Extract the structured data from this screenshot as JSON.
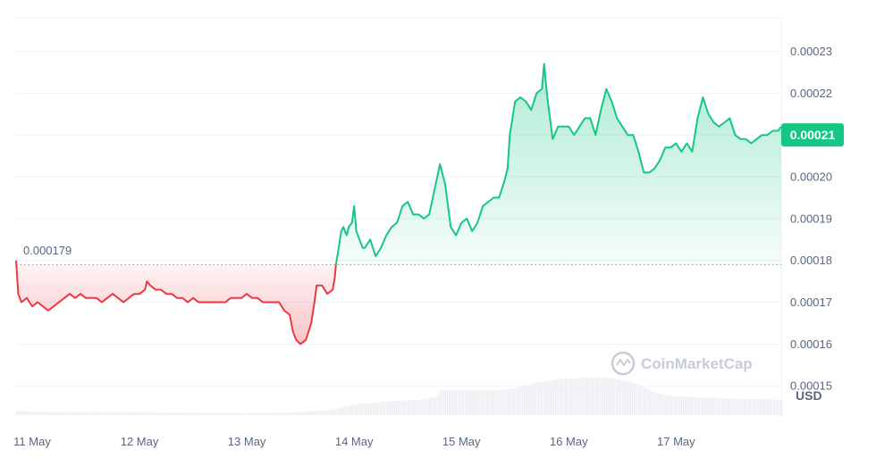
{
  "chart_data": {
    "type": "area",
    "currency_label": "USD",
    "watermark": "CoinMarketCap",
    "baseline": 0.000179,
    "baseline_label": "0.000179",
    "current_value": 0.00021,
    "current_label": "0.00021",
    "ylim": [
      0.000143,
      0.000238
    ],
    "y_ticks": [
      {
        "v": 0.00023,
        "label": "0.00023"
      },
      {
        "v": 0.00022,
        "label": "0.00022"
      },
      {
        "v": 0.0002,
        "label": "0.00020"
      },
      {
        "v": 0.00019,
        "label": "0.00019"
      },
      {
        "v": 0.00018,
        "label": "0.00018"
      },
      {
        "v": 0.00017,
        "label": "0.00017"
      },
      {
        "v": 0.00016,
        "label": "0.00016"
      },
      {
        "v": 0.00015,
        "label": "0.00015"
      }
    ],
    "grid_values": [
      0.00023,
      0.00022,
      0.00021,
      0.0002,
      0.00019,
      0.00018,
      0.00017,
      0.00016,
      0.00015
    ],
    "xlim": [
      10.85,
      17.98
    ],
    "x_ticks": [
      {
        "v": 11,
        "label": "11 May"
      },
      {
        "v": 12,
        "label": "12 May"
      },
      {
        "v": 13,
        "label": "13 May"
      },
      {
        "v": 14,
        "label": "14 May"
      },
      {
        "v": 15,
        "label": "15 May"
      },
      {
        "v": 16,
        "label": "16 May"
      },
      {
        "v": 17,
        "label": "17 May"
      }
    ],
    "colors": {
      "up": "#16c784",
      "down": "#ea3943",
      "grid": "#eff2f5",
      "text": "#58667e",
      "volume": "#eceef2"
    },
    "series": [
      {
        "values": [
          [
            10.85,
            0.00018
          ],
          [
            10.87,
            0.000172
          ],
          [
            10.9,
            0.00017
          ],
          [
            10.95,
            0.000171
          ],
          [
            11.0,
            0.000169
          ],
          [
            11.05,
            0.00017
          ],
          [
            11.1,
            0.000169
          ],
          [
            11.15,
            0.000168
          ],
          [
            11.2,
            0.000169
          ],
          [
            11.25,
            0.00017
          ],
          [
            11.3,
            0.000171
          ],
          [
            11.35,
            0.000172
          ],
          [
            11.4,
            0.000171
          ],
          [
            11.45,
            0.000172
          ],
          [
            11.5,
            0.000171
          ],
          [
            11.55,
            0.000171
          ],
          [
            11.6,
            0.000171
          ],
          [
            11.65,
            0.00017
          ],
          [
            11.7,
            0.000171
          ],
          [
            11.75,
            0.000172
          ],
          [
            11.8,
            0.000171
          ],
          [
            11.85,
            0.00017
          ],
          [
            11.9,
            0.000171
          ],
          [
            11.95,
            0.000172
          ],
          [
            12.0,
            0.000172
          ],
          [
            12.05,
            0.000173
          ],
          [
            12.07,
            0.000175
          ],
          [
            12.1,
            0.000174
          ],
          [
            12.15,
            0.000173
          ],
          [
            12.2,
            0.000173
          ],
          [
            12.25,
            0.000172
          ],
          [
            12.3,
            0.000172
          ],
          [
            12.35,
            0.000171
          ],
          [
            12.4,
            0.000171
          ],
          [
            12.45,
            0.00017
          ],
          [
            12.5,
            0.000171
          ],
          [
            12.55,
            0.00017
          ],
          [
            12.6,
            0.00017
          ],
          [
            12.65,
            0.00017
          ],
          [
            12.7,
            0.00017
          ],
          [
            12.75,
            0.00017
          ],
          [
            12.8,
            0.00017
          ],
          [
            12.85,
            0.000171
          ],
          [
            12.9,
            0.000171
          ],
          [
            12.95,
            0.000171
          ],
          [
            13.0,
            0.000172
          ],
          [
            13.05,
            0.000171
          ],
          [
            13.1,
            0.000171
          ],
          [
            13.15,
            0.00017
          ],
          [
            13.2,
            0.00017
          ],
          [
            13.25,
            0.00017
          ],
          [
            13.3,
            0.00017
          ],
          [
            13.35,
            0.000168
          ],
          [
            13.4,
            0.000167
          ],
          [
            13.43,
            0.000163
          ],
          [
            13.46,
            0.000161
          ],
          [
            13.5,
            0.00016
          ],
          [
            13.55,
            0.000161
          ],
          [
            13.6,
            0.000165
          ],
          [
            13.63,
            0.00017
          ],
          [
            13.65,
            0.000174
          ],
          [
            13.7,
            0.000174
          ],
          [
            13.75,
            0.000172
          ],
          [
            13.8,
            0.000173
          ],
          [
            13.82,
            0.000176
          ],
          [
            13.83,
            0.000179
          ]
        ]
      },
      {
        "values": [
          [
            13.83,
            0.000179
          ],
          [
            13.85,
            0.000182
          ],
          [
            13.88,
            0.000187
          ],
          [
            13.9,
            0.000188
          ],
          [
            13.93,
            0.000186
          ],
          [
            13.95,
            0.000188
          ],
          [
            13.98,
            0.000189
          ],
          [
            14.0,
            0.000193
          ],
          [
            14.02,
            0.000187
          ],
          [
            14.05,
            0.000185
          ],
          [
            14.08,
            0.000183
          ],
          [
            14.1,
            0.000183
          ],
          [
            14.15,
            0.000185
          ],
          [
            14.2,
            0.000181
          ],
          [
            14.25,
            0.000183
          ],
          [
            14.3,
            0.000186
          ],
          [
            14.35,
            0.000188
          ],
          [
            14.4,
            0.000189
          ],
          [
            14.45,
            0.000193
          ],
          [
            14.5,
            0.000194
          ],
          [
            14.55,
            0.000191
          ],
          [
            14.6,
            0.000191
          ],
          [
            14.65,
            0.00019
          ],
          [
            14.7,
            0.000191
          ],
          [
            14.75,
            0.000197
          ],
          [
            14.8,
            0.000203
          ],
          [
            14.85,
            0.000198
          ],
          [
            14.9,
            0.000188
          ],
          [
            14.95,
            0.000186
          ],
          [
            15.0,
            0.000189
          ],
          [
            15.05,
            0.00019
          ],
          [
            15.1,
            0.000187
          ],
          [
            15.15,
            0.000189
          ],
          [
            15.2,
            0.000193
          ],
          [
            15.25,
            0.000194
          ],
          [
            15.3,
            0.000195
          ],
          [
            15.35,
            0.000195
          ],
          [
            15.4,
            0.000199
          ],
          [
            15.43,
            0.000202
          ],
          [
            15.45,
            0.00021
          ],
          [
            15.5,
            0.000218
          ],
          [
            15.55,
            0.000219
          ],
          [
            15.6,
            0.000218
          ],
          [
            15.65,
            0.000216
          ],
          [
            15.7,
            0.00022
          ],
          [
            15.75,
            0.000221
          ],
          [
            15.77,
            0.000227
          ],
          [
            15.8,
            0.000219
          ],
          [
            15.83,
            0.000213
          ],
          [
            15.85,
            0.000209
          ],
          [
            15.9,
            0.000212
          ],
          [
            15.95,
            0.000212
          ],
          [
            16.0,
            0.000212
          ],
          [
            16.05,
            0.00021
          ],
          [
            16.1,
            0.000212
          ],
          [
            16.15,
            0.000214
          ],
          [
            16.2,
            0.000214
          ],
          [
            16.25,
            0.00021
          ],
          [
            16.3,
            0.000216
          ],
          [
            16.35,
            0.000221
          ],
          [
            16.4,
            0.000218
          ],
          [
            16.45,
            0.000214
          ],
          [
            16.5,
            0.000212
          ],
          [
            16.55,
            0.00021
          ],
          [
            16.6,
            0.00021
          ],
          [
            16.65,
            0.000206
          ],
          [
            16.7,
            0.000201
          ],
          [
            16.75,
            0.000201
          ],
          [
            16.8,
            0.000202
          ],
          [
            16.85,
            0.000204
          ],
          [
            16.9,
            0.000207
          ],
          [
            16.95,
            0.000207
          ],
          [
            17.0,
            0.000208
          ],
          [
            17.05,
            0.000206
          ],
          [
            17.1,
            0.000208
          ],
          [
            17.15,
            0.000206
          ],
          [
            17.2,
            0.000214
          ],
          [
            17.25,
            0.000219
          ],
          [
            17.3,
            0.000215
          ],
          [
            17.35,
            0.000213
          ],
          [
            17.4,
            0.000212
          ],
          [
            17.45,
            0.000213
          ],
          [
            17.5,
            0.000214
          ],
          [
            17.55,
            0.00021
          ],
          [
            17.6,
            0.000209
          ],
          [
            17.65,
            0.000209
          ],
          [
            17.7,
            0.000208
          ],
          [
            17.75,
            0.000209
          ],
          [
            17.8,
            0.00021
          ],
          [
            17.85,
            0.00021
          ],
          [
            17.9,
            0.000211
          ],
          [
            17.95,
            0.000211
          ],
          [
            17.98,
            0.000212
          ]
        ]
      }
    ],
    "volume": [
      [
        10.85,
        0.18
      ],
      [
        11.0,
        0.14
      ],
      [
        11.5,
        0.12
      ],
      [
        12.0,
        0.12
      ],
      [
        12.5,
        0.1
      ],
      [
        13.0,
        0.08
      ],
      [
        13.5,
        0.12
      ],
      [
        13.8,
        0.22
      ],
      [
        14.0,
        0.42
      ],
      [
        14.3,
        0.55
      ],
      [
        14.6,
        0.62
      ],
      [
        14.75,
        0.7
      ],
      [
        14.8,
        1.0
      ],
      [
        15.0,
        1.0
      ],
      [
        15.3,
        0.98
      ],
      [
        15.5,
        1.08
      ],
      [
        15.7,
        1.3
      ],
      [
        15.9,
        1.45
      ],
      [
        16.2,
        1.5
      ],
      [
        16.4,
        1.48
      ],
      [
        16.6,
        1.3
      ],
      [
        16.8,
        0.9
      ],
      [
        17.0,
        0.75
      ],
      [
        17.3,
        0.7
      ],
      [
        17.6,
        0.65
      ],
      [
        17.98,
        0.62
      ]
    ]
  }
}
